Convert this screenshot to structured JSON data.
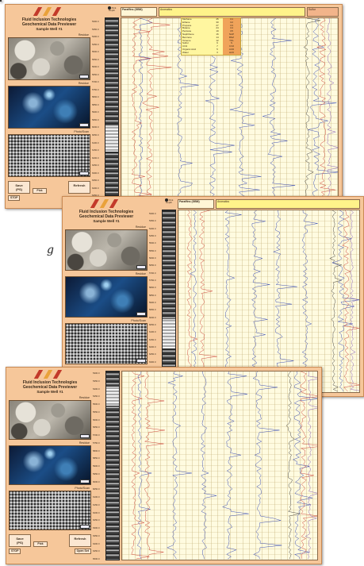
{
  "app": {
    "title": "Fluid Inclusion Technologies",
    "subtitle": "Geochemical Data Previewer",
    "well": "Sample Well #1",
    "logo_colors": [
      "#c33a2a",
      "#e9a23a",
      "#c33a2a"
    ]
  },
  "thumbnails": [
    {
      "caption": "Residue",
      "kind": "rock"
    },
    {
      "caption": "Residue",
      "kind": "blue"
    },
    {
      "caption": "Photo/Scan",
      "kind": "grain"
    }
  ],
  "buttons": {
    "save": "Save",
    "save_sub": "(PS)",
    "misc": "Pick",
    "refresh": "Refresh",
    "stop": "STOP",
    "open": "Open Set"
  },
  "header": {
    "cell1": "Paraffins (GBM)",
    "cell2": "Aromatics",
    "cell3": "Sulfur"
  },
  "picker_label": "Pick Depth",
  "depths": [
    "5300.0",
    "5350.0",
    "5400.0",
    "5450.0",
    "5500.0",
    "5550.0",
    "5600.0",
    "5650.0",
    "5700.0",
    "5750.0",
    "5800.0",
    "5850.0",
    "5900.0",
    "5950.0",
    "6000.0",
    "6050.0",
    "6100.0",
    "6150.0",
    "6200.0",
    "6250.0",
    "6300.0",
    "6350.0",
    "6400.0",
    "6450.0",
    "6500.0"
  ],
  "legend": [
    {
      "name": "Methane",
      "v": "45",
      "t": "C1"
    },
    {
      "name": "Ethane",
      "v": "30",
      "t": "C2"
    },
    {
      "name": "Propane",
      "v": "27",
      "t": "C3"
    },
    {
      "name": "Butane",
      "v": "24",
      "t": "C4"
    },
    {
      "name": "Pentane",
      "v": "19",
      "t": "C5"
    },
    {
      "name": "Naphthene",
      "v": "16",
      "t": "NAP"
    },
    {
      "name": "Benzene",
      "v": "14",
      "t": "BNZ"
    },
    {
      "name": "Toluene",
      "v": "12",
      "t": "TOL"
    },
    {
      "name": "Sulfur",
      "v": "9",
      "t": "S"
    },
    {
      "name": "CO2",
      "v": "7",
      "t": "CO2"
    },
    {
      "name": "Organic Acid",
      "v": "5",
      "t": "ACD"
    },
    {
      "name": "Water",
      "v": "3",
      "t": "H2O"
    }
  ],
  "trace_colors": [
    "#c8382c",
    "#2a3fb0",
    "#1a8a3a",
    "#333333",
    "#7a50b0"
  ],
  "side_label": "g"
}
